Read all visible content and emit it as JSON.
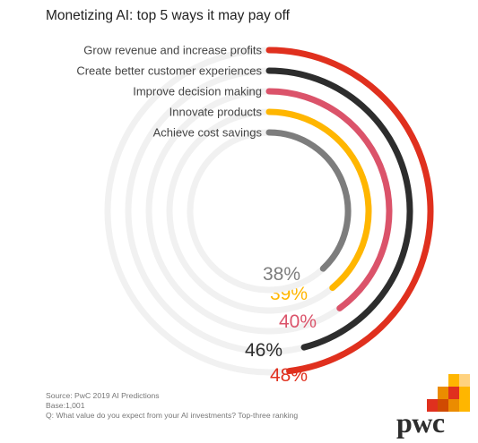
{
  "title": "Monetizing AI: top 5 ways it may pay off",
  "chart_data": {
    "type": "radial-bar",
    "title": "Monetizing AI: top 5 ways it may pay off",
    "series": [
      {
        "name": "Grow revenue and increase profits",
        "value": 48,
        "label": "48%",
        "color": "#e0301e"
      },
      {
        "name": "Create better customer experiences",
        "value": 46,
        "label": "46%",
        "color": "#2d2d2d"
      },
      {
        "name": "Improve decision making",
        "value": 40,
        "label": "40%",
        "color": "#db536a"
      },
      {
        "name": "Innovate products",
        "value": 39,
        "label": "39%",
        "color": "#ffb600"
      },
      {
        "name": "Achieve cost savings",
        "value": 38,
        "label": "38%",
        "color": "#7d7d7d"
      }
    ],
    "track_color": "#f1f1f1"
  },
  "footer": {
    "source": "Source: PwC 2019 AI Predictions",
    "base": "Base:1,001",
    "question": "Q: What value do you expect from your AI investments? Top-three ranking"
  },
  "logo": {
    "text": "pwc"
  }
}
